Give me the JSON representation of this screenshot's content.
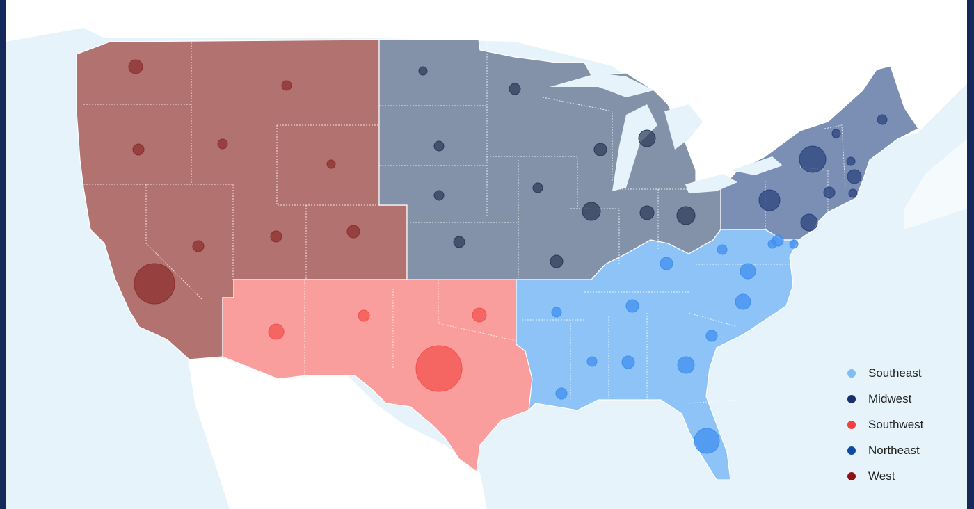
{
  "legend": {
    "items": [
      {
        "label": "Southeast",
        "color": "#7dbff3"
      },
      {
        "label": "Midwest",
        "color": "#15306b"
      },
      {
        "label": "Southwest",
        "color": "#f0403f"
      },
      {
        "label": "Northeast",
        "color": "#0d4aa3"
      },
      {
        "label": "West",
        "color": "#8a1414"
      }
    ]
  },
  "regions": {
    "West": {
      "fill": "#b27370",
      "bubble": "#8b2e2e"
    },
    "Southwest": {
      "fill": "#f99e9c",
      "bubble": "#f2504d"
    },
    "Midwest": {
      "fill": "#8492a9",
      "bubble": "#2b3958"
    },
    "Northeast": {
      "fill": "#7b8eb4",
      "bubble": "#2a437d"
    },
    "Southeast": {
      "fill": "#8ec3f7",
      "bubble": "#3f8ef0"
    }
  }
}
